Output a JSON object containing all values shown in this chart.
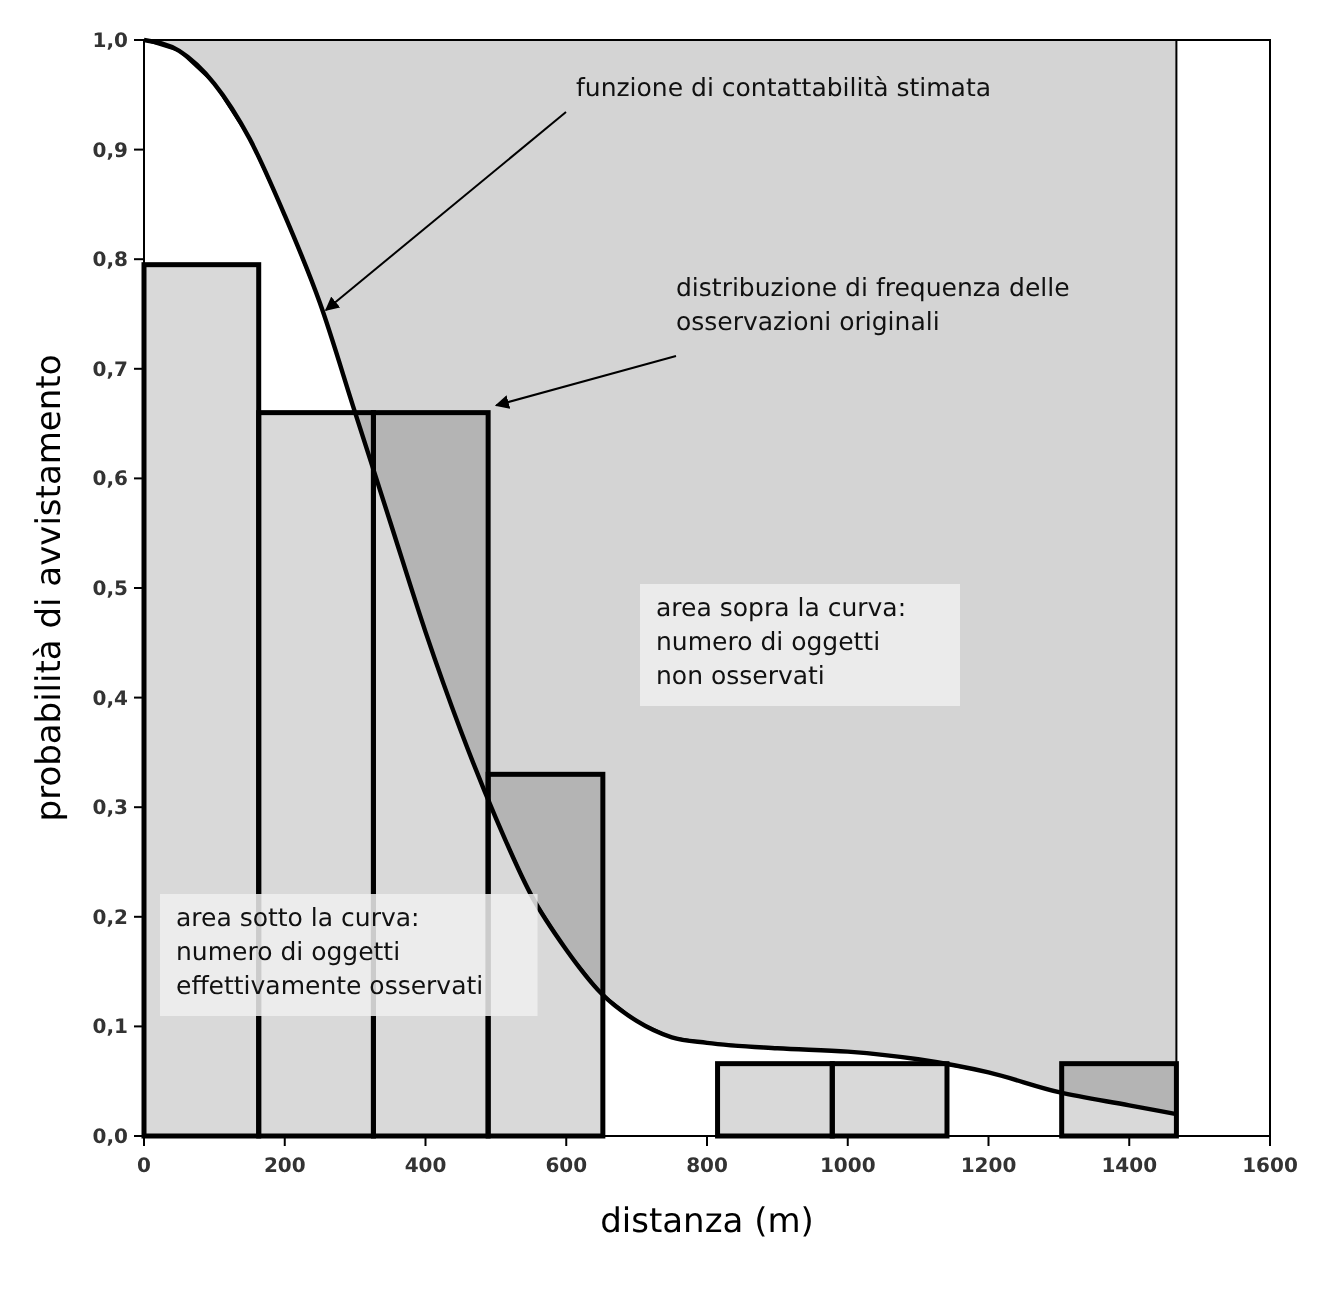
{
  "chart_data": {
    "type": "histogram",
    "xlabel": "distanza (m)",
    "ylabel": "probabilità di avvistamento",
    "series": [
      {
        "type": "histogram",
        "color": "#cccccc",
        "bins": [
          0,
          163,
          326,
          489,
          652,
          815,
          978,
          1141,
          1304,
          1467
        ],
        "values": [
          0.795,
          0.66,
          0.66,
          0.33,
          0,
          0.066,
          0.066,
          0,
          0.066
        ]
      },
      {
        "type": "line",
        "color": "#000000",
        "x": [
          0,
          50,
          100,
          150,
          200,
          250,
          300,
          350,
          400,
          450,
          500,
          550,
          600,
          650,
          700,
          750,
          800,
          900,
          1000,
          1100,
          1200,
          1300,
          1400,
          1467
        ],
        "values": [
          1.0,
          0.99,
          0.96,
          0.91,
          0.84,
          0.76,
          0.66,
          0.56,
          0.46,
          0.37,
          0.29,
          0.22,
          0.17,
          0.13,
          0.105,
          0.09,
          0.085,
          0.08,
          0.077,
          0.07,
          0.058,
          0.04,
          0.028,
          0.02
        ],
        "lower": [
          1.0,
          0.99,
          0.96,
          0.91,
          0.84,
          0.76,
          0.66,
          0.56,
          0.46,
          0.37,
          0.29,
          0.22,
          0.17,
          0.13,
          0.105,
          0.09,
          0.085,
          0.08,
          0.077,
          0.07,
          0.058,
          0.04,
          0.028,
          0.02
        ],
        "upper": [
          1,
          1,
          1,
          1,
          1,
          1,
          1,
          1,
          1,
          1,
          1,
          1,
          1,
          1,
          1,
          1,
          1,
          1,
          1,
          1,
          1,
          1,
          1,
          1
        ]
      }
    ],
    "xlim": [
      0,
      1600
    ],
    "xticks": [
      0,
      200,
      400,
      600,
      800,
      1000,
      1200,
      1400,
      1600
    ],
    "ylim": [
      0,
      1
    ],
    "yticks": [
      {
        "value": 0,
        "label": "0,0"
      },
      {
        "value": 0.1,
        "label": "0,1"
      },
      {
        "value": 0.2,
        "label": "0,2"
      },
      {
        "value": 0.3,
        "label": "0,3"
      },
      {
        "value": 0.4,
        "label": "0,4"
      },
      {
        "value": 0.5,
        "label": "0,5"
      },
      {
        "value": 0.6,
        "label": "0,6"
      },
      {
        "value": 0.7,
        "label": "0,7"
      },
      {
        "value": 0.8,
        "label": "0,8"
      },
      {
        "value": 0.9,
        "label": "0,9"
      },
      {
        "value": 1,
        "label": "1,0"
      }
    ],
    "grid": false,
    "annotations": [
      {
        "text": "funzione di contattabilità stimata",
        "x": 250,
        "y": 0.75
      },
      {
        "text": "distribuzione di frequenza delle osservazioni originali",
        "x": 492,
        "y": 0.663
      },
      "area sopra la curva: numero di oggetti non osservati",
      "area sotto la curva: numero di oggetti effettivamente osservati"
    ]
  }
}
